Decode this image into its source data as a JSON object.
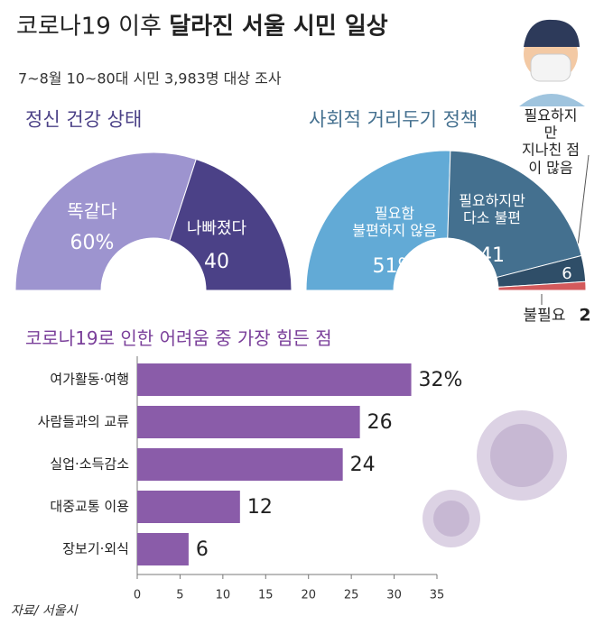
{
  "header": {
    "title": [
      "코로나19 이후",
      "달라진 서울 시민 일상"
    ],
    "subtitle": "7~8월 10~80대 시민 3,983명 대상 조사",
    "source": "자료/ 서울시"
  },
  "chart_data": [
    {
      "type": "pie",
      "title": "정신 건강 상태",
      "categories": [
        "똑같다",
        "나빠졌다"
      ],
      "values": [
        60,
        40
      ],
      "value_labels": [
        "60%",
        "40"
      ],
      "colors": [
        "#9d94cf",
        "#4b4187"
      ]
    },
    {
      "type": "pie",
      "title": "사회적 거리두기 정책",
      "categories": [
        "필요함\n불편하지 않음",
        "필요하지만\n다소 불편",
        "필요하지만\n지나친 점이 많음",
        "불필요"
      ],
      "values": [
        51,
        41,
        6,
        2
      ],
      "value_labels": [
        "51%",
        "41",
        "6",
        "2"
      ],
      "colors": [
        "#62aad6",
        "#44708f",
        "#2f4e68",
        "#d35a5c"
      ]
    },
    {
      "type": "hbar",
      "title": "코로나19로 인한 어려움 중 가장 힘든 점",
      "categories": [
        "여가활동·여행",
        "사람들과의 교류",
        "실업·소득감소",
        "대중교통 이용",
        "장보기·외식"
      ],
      "values": [
        32,
        26,
        24,
        12,
        6
      ],
      "value_labels": [
        "32%",
        "26",
        "24",
        "12",
        "6"
      ],
      "color": "#8a5ca9",
      "xlim": [
        0,
        35
      ],
      "xticks": [
        0,
        5,
        10,
        15,
        20,
        25,
        30,
        35
      ]
    }
  ]
}
